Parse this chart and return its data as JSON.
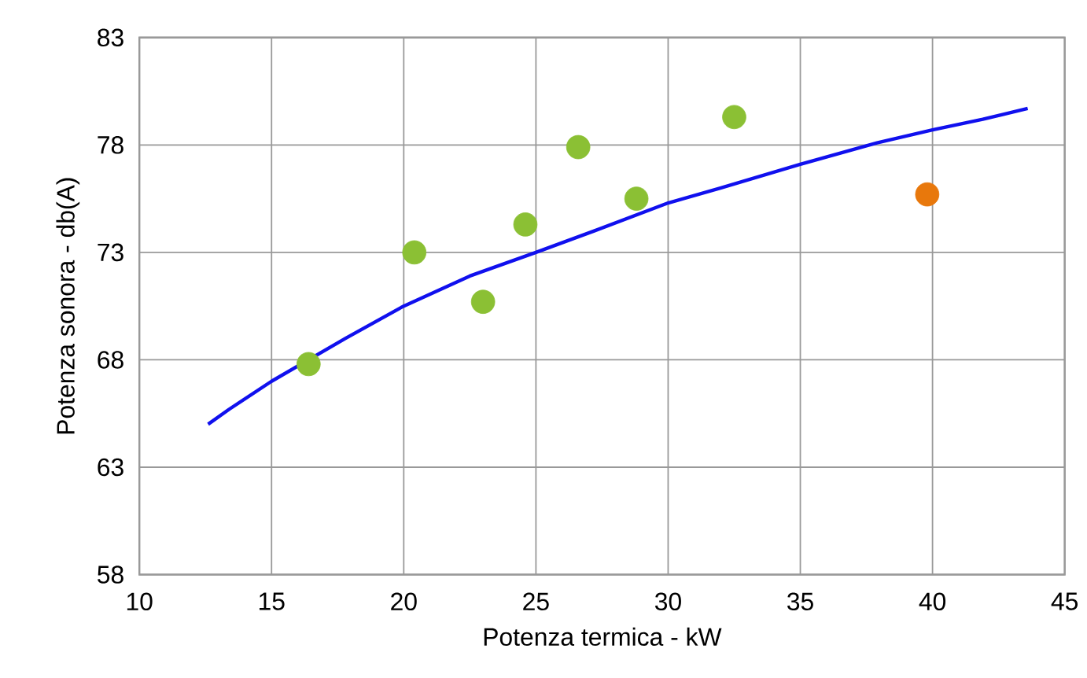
{
  "chart_data": {
    "type": "scatter",
    "xlabel": "Potenza termica - kW",
    "ylabel": "Potenza sonora - db(A)",
    "xlim": [
      10,
      45
    ],
    "ylim": [
      58,
      83
    ],
    "xticks": [
      10,
      15,
      20,
      25,
      30,
      35,
      40,
      45
    ],
    "yticks": [
      58,
      63,
      68,
      73,
      78,
      83
    ],
    "grid": true,
    "marker": "circle",
    "series": [
      {
        "color": "#8bc034",
        "x": [
          16.4,
          20.4,
          23.0,
          24.6,
          26.6,
          28.8,
          32.5
        ],
        "values": [
          67.8,
          73.0,
          70.7,
          74.3,
          77.9,
          75.5,
          79.3
        ]
      },
      {
        "color": "#e8780c",
        "x": [
          39.8
        ],
        "values": [
          75.7
        ]
      },
      {
        "type": "line",
        "color": "#1010ee",
        "marker": "none",
        "x": [
          12.6,
          13.4,
          15.0,
          17.8,
          20.0,
          22.5,
          25.0,
          27.2,
          30.0,
          32.0,
          35.0,
          37.9,
          40.0,
          41.9,
          43.6
        ],
        "values": [
          65.0,
          65.7,
          67.0,
          69.0,
          70.5,
          71.9,
          73.0,
          74.0,
          75.3,
          76.0,
          77.1,
          78.1,
          78.7,
          79.2,
          79.7
        ]
      }
    ]
  }
}
